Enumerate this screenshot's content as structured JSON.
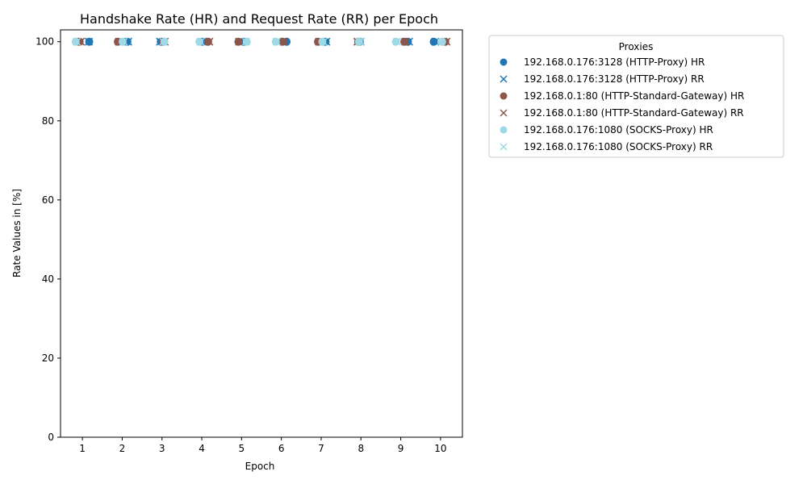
{
  "chart_data": {
    "type": "scatter",
    "title": "Handshake Rate (HR) and Request Rate (RR) per Epoch",
    "xlabel": "Epoch",
    "ylabel": "Rate Values in [%]",
    "x": [
      1,
      2,
      3,
      4,
      5,
      6,
      7,
      8,
      9,
      10
    ],
    "xticks": [
      "1",
      "2",
      "3",
      "4",
      "5",
      "6",
      "7",
      "8",
      "9",
      "10"
    ],
    "yticks": [
      "0",
      "20",
      "40",
      "60",
      "80",
      "100"
    ],
    "xlim": [
      0.45,
      10.55
    ],
    "ylim": [
      0,
      103
    ],
    "grid": false,
    "legend": {
      "title": "Proxies",
      "placement": "outside-top-right"
    },
    "series": [
      {
        "name": "192.168.0.176:3128 (HTTP-Proxy) HR",
        "marker": "circle",
        "color": "#1f77b4",
        "x": [
          1.17,
          2.13,
          2.97,
          4.03,
          5.04,
          6.13,
          7.11,
          7.97,
          9.18,
          9.83
        ],
        "values": [
          100,
          100,
          100,
          100,
          100,
          100,
          100,
          100,
          100,
          100
        ]
      },
      {
        "name": "192.168.0.176:3128 (HTTP-Proxy) RR",
        "marker": "x",
        "color": "#1f77b4",
        "x": [
          1.16,
          2.15,
          2.95,
          4.06,
          5.01,
          6.09,
          7.13,
          7.99,
          9.21,
          9.87
        ],
        "values": [
          100,
          100,
          100,
          100,
          100,
          100,
          100,
          100,
          100,
          100
        ]
      },
      {
        "name": "192.168.0.1:80 (HTTP-Standard-Gateway) HR",
        "marker": "circle",
        "color": "#8c564b",
        "x": [
          0.93,
          1.89,
          3.04,
          4.16,
          4.92,
          6.03,
          6.92,
          7.93,
          9.09,
          10.12
        ],
        "values": [
          100,
          100,
          100,
          100,
          100,
          100,
          100,
          100,
          100,
          100
        ]
      },
      {
        "name": "192.168.0.1:80 (HTTP-Standard-Gateway) RR",
        "marker": "x",
        "color": "#8c564b",
        "x": [
          0.96,
          1.92,
          3.07,
          4.19,
          4.94,
          6.06,
          6.95,
          7.91,
          9.12,
          10.15
        ],
        "values": [
          100,
          100,
          100,
          100,
          100,
          100,
          100,
          100,
          100,
          100
        ]
      },
      {
        "name": "192.168.0.176:1080 (SOCKS-Proxy) HR",
        "marker": "circle",
        "color": "#9edae5",
        "x": [
          0.83,
          2.01,
          3.06,
          3.94,
          5.13,
          5.86,
          7.03,
          7.95,
          8.88,
          10.04
        ],
        "values": [
          100,
          100,
          100,
          100,
          100,
          100,
          100,
          100,
          100,
          100
        ]
      },
      {
        "name": "192.168.0.176:1080 (SOCKS-Proxy) RR",
        "marker": "x",
        "color": "#9edae5",
        "x": [
          0.86,
          2.04,
          3.03,
          3.97,
          5.11,
          5.88,
          7.06,
          7.98,
          8.91,
          10.01
        ],
        "values": [
          100,
          100,
          100,
          100,
          100,
          100,
          100,
          100,
          100,
          100
        ]
      }
    ]
  }
}
